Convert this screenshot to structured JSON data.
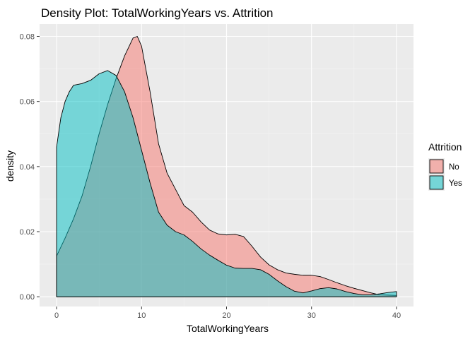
{
  "chart_data": {
    "type": "area",
    "title": "Density Plot: TotalWorkingYears vs. Attrition",
    "xlabel": "TotalWorkingYears",
    "ylabel": "density",
    "xlim": [
      -2,
      42
    ],
    "ylim": [
      -0.003,
      0.0838
    ],
    "x_ticks": [
      0,
      10,
      20,
      30,
      40
    ],
    "y_ticks": [
      0.0,
      0.02,
      0.04,
      0.06,
      0.08
    ],
    "x_tick_labels": [
      "0",
      "10",
      "20",
      "30",
      "40"
    ],
    "y_tick_labels": [
      "0.00",
      "0.02",
      "0.04",
      "0.06",
      "0.08"
    ],
    "grid": true,
    "legend": {
      "title": "Attrition",
      "position": "right"
    },
    "series": [
      {
        "name": "No",
        "color": "#F8766D",
        "x": [
          0,
          1,
          2,
          3,
          4,
          5,
          6,
          7,
          8,
          9,
          9.5,
          10,
          11,
          12,
          13,
          14,
          15,
          16,
          17,
          18,
          19,
          20,
          21,
          22,
          23,
          24,
          25,
          26,
          27,
          28,
          29,
          30,
          31,
          32,
          33,
          34,
          35,
          36,
          37,
          38,
          39,
          40
        ],
        "y": [
          0.0125,
          0.018,
          0.024,
          0.031,
          0.04,
          0.05,
          0.059,
          0.067,
          0.074,
          0.0795,
          0.08,
          0.077,
          0.063,
          0.047,
          0.038,
          0.033,
          0.028,
          0.026,
          0.023,
          0.0205,
          0.0193,
          0.019,
          0.0192,
          0.0185,
          0.0155,
          0.0122,
          0.0098,
          0.0083,
          0.0073,
          0.0069,
          0.0066,
          0.0066,
          0.0062,
          0.0053,
          0.0043,
          0.0034,
          0.0026,
          0.0019,
          0.0012,
          0.0006,
          0.0005,
          0.0004
        ]
      },
      {
        "name": "Yes",
        "color": "#00BFC4",
        "x": [
          0,
          0.5,
          1,
          1.5,
          2,
          3,
          4,
          5,
          6,
          7,
          8,
          9,
          10,
          11,
          12,
          13,
          14,
          15,
          16,
          17,
          18,
          19,
          20,
          21,
          22,
          23,
          24,
          25,
          26,
          27,
          28,
          29,
          30,
          31,
          32,
          33,
          34,
          35,
          36,
          37,
          38,
          39,
          40
        ],
        "y": [
          0.046,
          0.055,
          0.06,
          0.063,
          0.065,
          0.0655,
          0.0665,
          0.0685,
          0.0695,
          0.068,
          0.063,
          0.055,
          0.045,
          0.035,
          0.026,
          0.022,
          0.02,
          0.019,
          0.017,
          0.0147,
          0.0128,
          0.0112,
          0.0097,
          0.0088,
          0.0087,
          0.0087,
          0.0083,
          0.0069,
          0.0049,
          0.0031,
          0.0017,
          0.0012,
          0.0018,
          0.0025,
          0.0028,
          0.0024,
          0.0016,
          0.001,
          0.0006,
          0.0006,
          0.0009,
          0.0013,
          0.0016
        ]
      }
    ]
  }
}
